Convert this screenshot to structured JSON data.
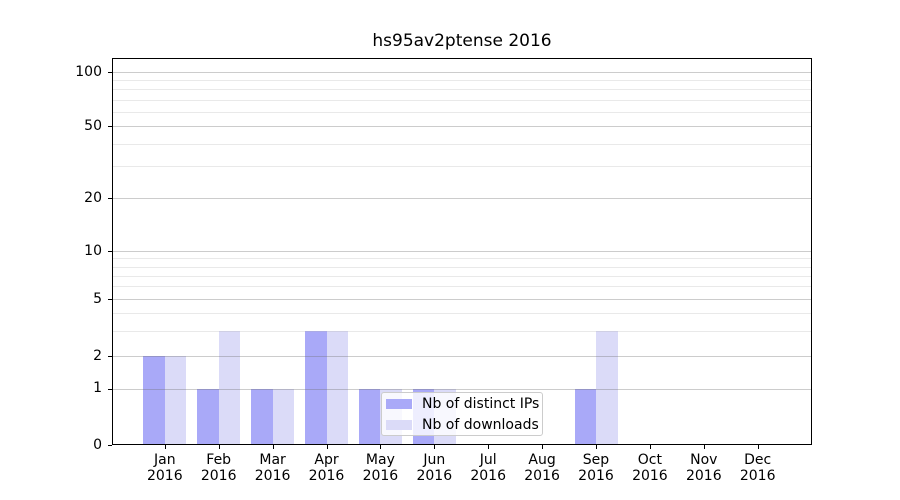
{
  "title": "hs95av2ptense 2016",
  "chart_data": {
    "type": "bar",
    "title": "hs95av2ptense 2016",
    "categories": [
      {
        "month": "Jan",
        "year": "2016"
      },
      {
        "month": "Feb",
        "year": "2016"
      },
      {
        "month": "Mar",
        "year": "2016"
      },
      {
        "month": "Apr",
        "year": "2016"
      },
      {
        "month": "May",
        "year": "2016"
      },
      {
        "month": "Jun",
        "year": "2016"
      },
      {
        "month": "Jul",
        "year": "2016"
      },
      {
        "month": "Aug",
        "year": "2016"
      },
      {
        "month": "Sep",
        "year": "2016"
      },
      {
        "month": "Oct",
        "year": "2016"
      },
      {
        "month": "Nov",
        "year": "2016"
      },
      {
        "month": "Dec",
        "year": "2016"
      }
    ],
    "series": [
      {
        "name": "Nb of distinct IPs",
        "color": "#a9a9f8",
        "values": [
          2,
          1,
          1,
          3,
          1,
          1,
          0,
          0,
          1,
          0,
          0,
          0
        ]
      },
      {
        "name": "Nb of downloads",
        "color": "#dbdbf8",
        "values": [
          2,
          3,
          1,
          3,
          1,
          1,
          0,
          0,
          3,
          0,
          0,
          0
        ]
      }
    ],
    "y_axis": {
      "scale": "log-like",
      "major_ticks": [
        0,
        1,
        2,
        5,
        10,
        20,
        50,
        100
      ],
      "minor_gridline_values": [
        3,
        4,
        6,
        7,
        8,
        9,
        30,
        40,
        60,
        70,
        80,
        90
      ]
    },
    "legend": {
      "position": "lower-center-inside"
    },
    "grid": true
  }
}
